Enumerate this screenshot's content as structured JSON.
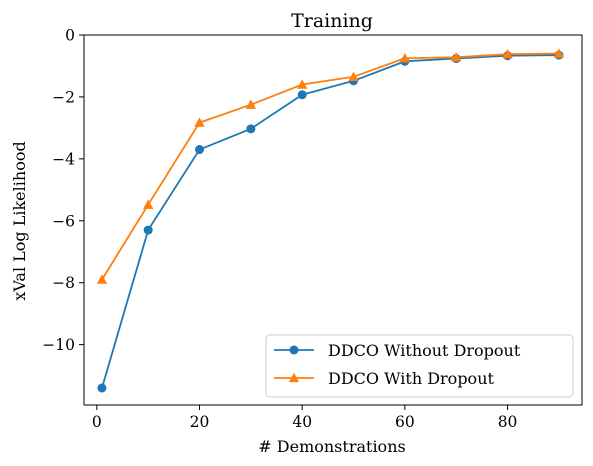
{
  "chart_data": {
    "type": "line",
    "title": "Training",
    "xlabel": "# Demonstrations",
    "ylabel": "xVal Log Likelihood",
    "xlim": [
      -2.5,
      94.5
    ],
    "ylim": [
      -11.95,
      0
    ],
    "xticks": [
      0,
      20,
      40,
      60,
      80
    ],
    "yticks": [
      0,
      -2,
      -4,
      -6,
      -8,
      -10
    ],
    "grid": false,
    "legend_position": "lower right",
    "series": [
      {
        "name": "DDCO Without Dropout",
        "color": "#1f77b4",
        "marker": "circle",
        "x": [
          1,
          10,
          20,
          30,
          40,
          50,
          60,
          70,
          80,
          90
        ],
        "y": [
          -11.4,
          -6.3,
          -3.7,
          -3.03,
          -1.93,
          -1.48,
          -0.85,
          -0.76,
          -0.67,
          -0.65
        ]
      },
      {
        "name": "DDCO With Dropout",
        "color": "#ff7f0e",
        "marker": "triangle",
        "x": [
          1,
          10,
          20,
          30,
          40,
          50,
          60,
          70,
          80,
          90
        ],
        "y": [
          -7.9,
          -5.48,
          -2.83,
          -2.25,
          -1.6,
          -1.35,
          -0.75,
          -0.72,
          -0.62,
          -0.6
        ]
      }
    ]
  }
}
